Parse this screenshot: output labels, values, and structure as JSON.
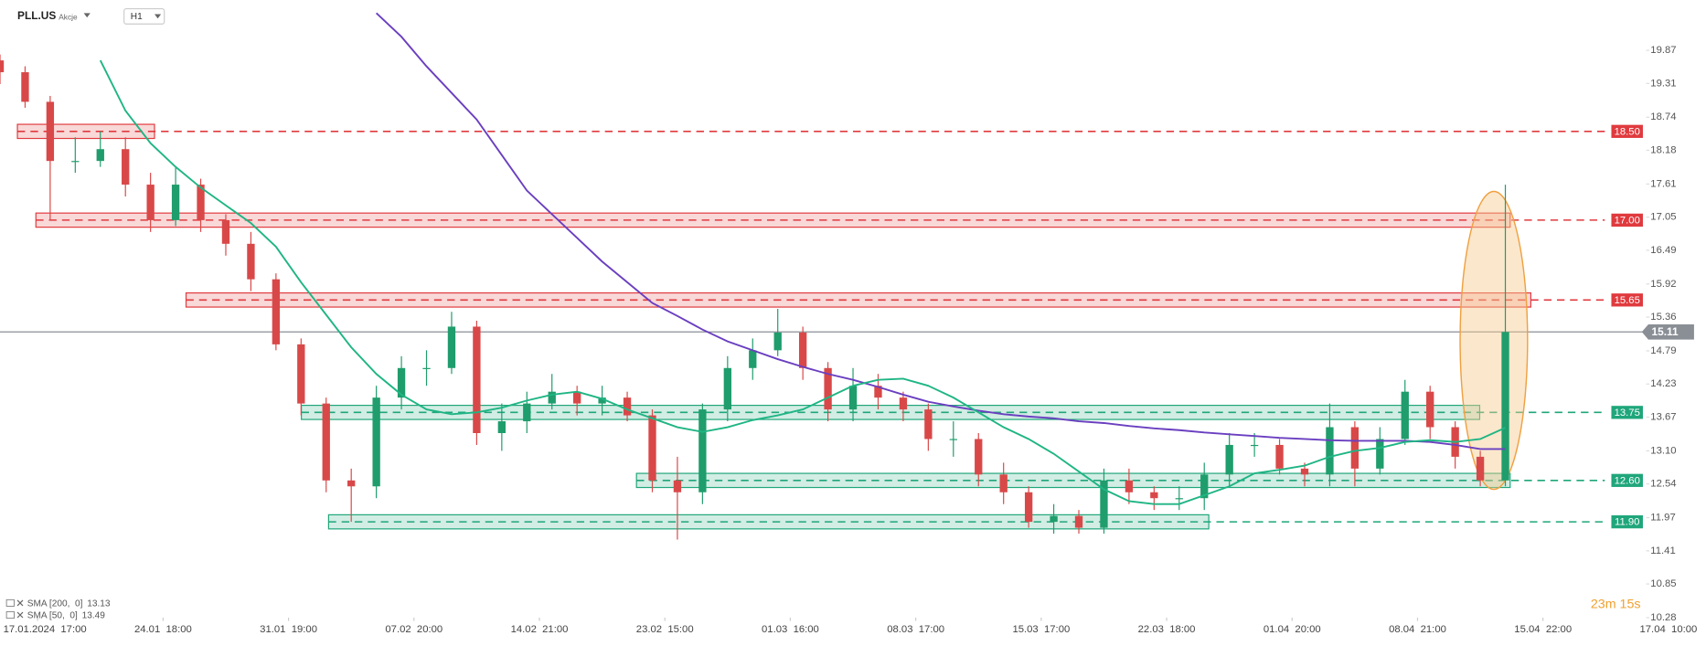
{
  "header": {
    "ticker": "PLL.US",
    "asset_class": "Akcje",
    "timeframe": "H1"
  },
  "timer": "23m 15s",
  "chart_data": {
    "type": "candlestick",
    "xticks": [
      {
        "value": 1.5,
        "label": "17.01.2024  17:00"
      },
      {
        "value": 6.5,
        "label": "24.01  18:00"
      },
      {
        "value": 11.5,
        "label": "31.01  19:00"
      },
      {
        "value": 16.5,
        "label": "07.02  20:00"
      },
      {
        "value": 21.5,
        "label": "14.02  21:00"
      },
      {
        "value": 26.5,
        "label": "23.02  15:00"
      },
      {
        "value": 31.5,
        "label": "01.03  16:00"
      },
      {
        "value": 36.5,
        "label": "08.03  17:00"
      },
      {
        "value": 41.5,
        "label": "15.03  17:00"
      },
      {
        "value": 46.5,
        "label": "22.03  18:00"
      },
      {
        "value": 51.5,
        "label": "01.04  20:00"
      },
      {
        "value": 56.5,
        "label": "08.04  21:00"
      },
      {
        "value": 61.5,
        "label": "15.04  22:00"
      },
      {
        "value": 66.5,
        "label": "17.04  10:00"
      }
    ],
    "xlim": [
      0,
      67
    ],
    "ylim": [
      10.28,
      20.72
    ],
    "yticks": [
      10.28,
      10.85,
      11.41,
      11.97,
      12.54,
      {
        "value": 13.1,
        "label": "13.10"
      },
      13.67,
      14.23,
      14.79,
      15.36,
      15.92,
      16.49,
      17.05,
      17.61,
      18.18,
      18.74,
      19.31,
      19.87
    ],
    "up_color": "#1f9d6c",
    "down_color": "#d94848",
    "open": [
      19.7,
      19.5,
      19.0,
      18.0,
      18.0,
      18.2,
      17.6,
      17.0,
      17.6,
      17.0,
      16.6,
      16.0,
      14.9,
      13.9,
      12.6,
      12.5,
      14.0,
      14.5,
      14.5,
      15.2,
      13.4,
      13.6,
      13.9,
      14.1,
      13.9,
      14.0,
      13.7,
      12.6,
      12.4,
      13.8,
      14.5,
      14.8,
      15.1,
      14.5,
      13.8,
      14.2,
      14.0,
      13.8,
      13.3,
      13.3,
      12.7,
      12.4,
      11.9,
      12.0,
      11.8,
      12.6,
      12.4,
      12.3,
      12.3,
      12.7,
      13.2,
      13.2,
      12.8,
      12.7,
      13.5,
      12.8,
      13.3,
      14.1,
      13.5,
      13.0,
      12.6
    ],
    "high": [
      19.8,
      19.6,
      19.1,
      18.4,
      18.5,
      18.4,
      17.8,
      17.9,
      17.7,
      17.1,
      16.8,
      16.1,
      15.0,
      14.0,
      12.8,
      14.2,
      14.7,
      14.8,
      15.45,
      15.3,
      13.9,
      14.1,
      14.4,
      14.2,
      14.2,
      14.1,
      13.8,
      13.0,
      13.9,
      14.7,
      15.0,
      15.5,
      15.2,
      14.6,
      14.5,
      14.4,
      14.1,
      13.9,
      13.6,
      13.4,
      12.9,
      12.5,
      12.2,
      12.1,
      12.8,
      12.8,
      12.5,
      12.5,
      12.9,
      13.4,
      13.4,
      13.3,
      12.9,
      13.9,
      13.6,
      13.5,
      14.3,
      14.2,
      13.6,
      13.1,
      17.6
    ],
    "low": [
      19.3,
      18.9,
      17.0,
      17.8,
      17.9,
      17.4,
      16.8,
      16.9,
      16.8,
      16.4,
      15.8,
      14.8,
      13.7,
      12.4,
      11.9,
      12.3,
      13.8,
      14.2,
      14.4,
      13.2,
      13.1,
      13.4,
      13.8,
      13.7,
      13.7,
      13.6,
      12.4,
      11.6,
      12.2,
      13.6,
      14.3,
      14.7,
      14.3,
      13.6,
      13.6,
      13.8,
      13.6,
      13.1,
      13.0,
      12.5,
      12.2,
      11.8,
      11.7,
      11.7,
      11.7,
      12.2,
      12.1,
      12.1,
      12.1,
      12.5,
      13.0,
      12.7,
      12.5,
      12.5,
      12.5,
      12.7,
      13.2,
      13.3,
      12.8,
      12.5,
      12.5
    ],
    "close": [
      19.5,
      19.0,
      18.0,
      18.0,
      18.2,
      17.6,
      17.0,
      17.6,
      17.0,
      16.6,
      16.0,
      14.9,
      13.9,
      12.6,
      12.5,
      14.0,
      14.5,
      14.5,
      15.2,
      13.4,
      13.6,
      13.9,
      14.1,
      13.9,
      14.0,
      13.7,
      12.6,
      12.4,
      13.8,
      14.5,
      14.8,
      15.1,
      14.5,
      13.8,
      14.2,
      14.0,
      13.8,
      13.3,
      13.3,
      12.7,
      12.4,
      11.9,
      12.0,
      11.8,
      12.6,
      12.4,
      12.3,
      12.3,
      12.7,
      13.2,
      13.2,
      12.8,
      12.7,
      13.5,
      12.8,
      13.3,
      14.1,
      13.5,
      13.0,
      12.6,
      15.11
    ],
    "series": [
      {
        "name": "SMA [200,  0]",
        "color": "#6a3fc0",
        "last": 13.13,
        "values": [
          null,
          null,
          null,
          null,
          null,
          null,
          null,
          null,
          null,
          null,
          null,
          null,
          null,
          null,
          null,
          20.5,
          20.1,
          19.6,
          19.15,
          18.7,
          18.1,
          17.5,
          17.1,
          16.7,
          16.3,
          15.95,
          15.6,
          15.38,
          15.15,
          14.95,
          14.8,
          14.65,
          14.52,
          14.4,
          14.3,
          14.18,
          14.05,
          13.93,
          13.85,
          13.78,
          13.72,
          13.68,
          13.65,
          13.6,
          13.57,
          13.52,
          13.48,
          13.45,
          13.41,
          13.38,
          13.35,
          13.32,
          13.3,
          13.28,
          13.27,
          13.27,
          13.27,
          13.25,
          13.2,
          13.13,
          13.13
        ]
      },
      {
        "name": "SMA [50,  0]",
        "color": "#1fb584",
        "last": 13.49,
        "values": [
          null,
          null,
          null,
          null,
          19.7,
          18.85,
          18.3,
          17.9,
          17.55,
          17.25,
          16.95,
          16.55,
          15.95,
          15.4,
          14.85,
          14.4,
          14.05,
          13.8,
          13.72,
          13.75,
          13.83,
          13.95,
          14.05,
          14.1,
          13.98,
          13.8,
          13.65,
          13.5,
          13.42,
          13.5,
          13.62,
          13.7,
          13.8,
          14.0,
          14.2,
          14.3,
          14.32,
          14.2,
          14.0,
          13.75,
          13.5,
          13.3,
          13.05,
          12.75,
          12.45,
          12.25,
          12.2,
          12.2,
          12.35,
          12.5,
          12.72,
          12.78,
          12.85,
          13.0,
          13.1,
          13.15,
          13.25,
          13.28,
          13.25,
          13.3,
          13.49
        ]
      }
    ],
    "levels": [
      {
        "value": 18.5,
        "label": "18.50",
        "color": "#e03a3e"
      },
      {
        "value": 17,
        "label": "17.00",
        "color": "#e03a3e"
      },
      {
        "value": 15.65,
        "label": "15.65",
        "color": "#e03a3e"
      },
      {
        "value": 13.75,
        "label": "13.75",
        "color": "#1fa67a"
      },
      {
        "value": 12.6,
        "label": "12.60",
        "color": "#1fa67a"
      },
      {
        "value": 11.9,
        "label": "11.90",
        "color": "#1fa67a"
      }
    ],
    "current_price": {
      "value": 15.11,
      "color": "#8a8f96"
    }
  }
}
